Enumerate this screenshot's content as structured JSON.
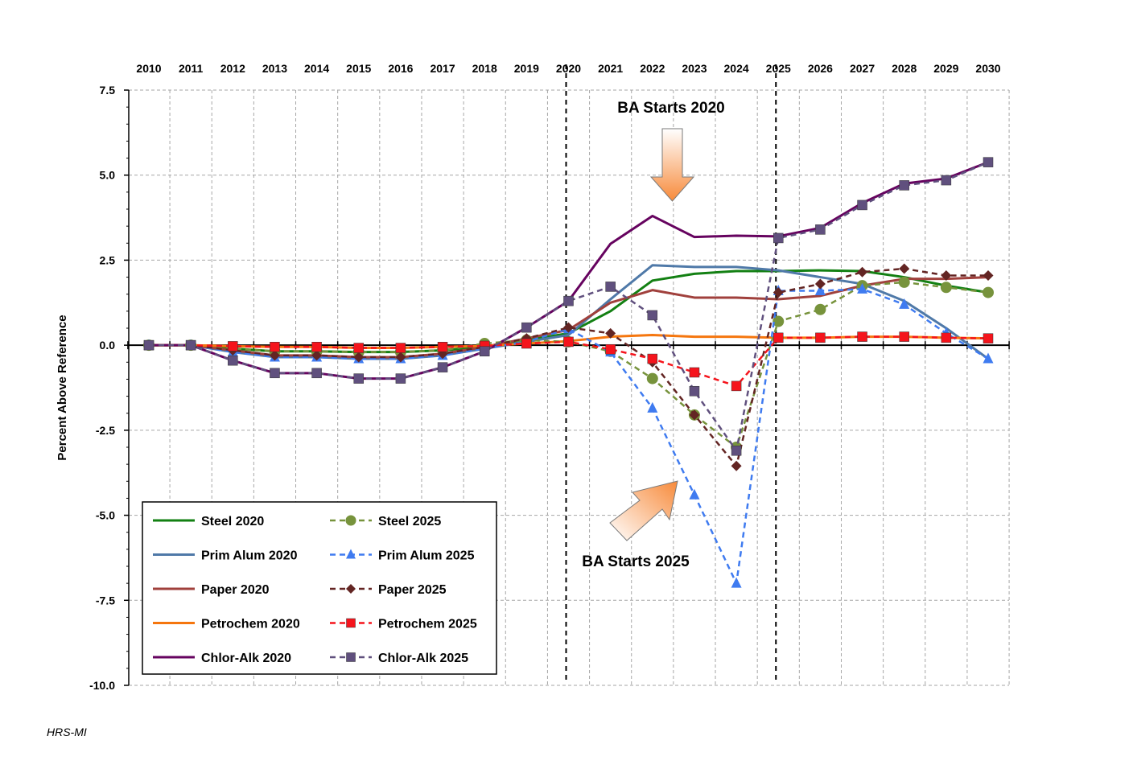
{
  "chart_data": {
    "type": "line",
    "title": "",
    "xlabel": "",
    "ylabel": "Percent Above Reference",
    "x": [
      2010,
      2011,
      2012,
      2013,
      2014,
      2015,
      2016,
      2017,
      2018,
      2019,
      2020,
      2021,
      2022,
      2023,
      2024,
      2025,
      2026,
      2027,
      2028,
      2029,
      2030
    ],
    "x_tick_labels": [
      "2010",
      "2011",
      "2012",
      "2013",
      "2014",
      "2015",
      "2016",
      "2017",
      "2018",
      "2019",
      "2020",
      "2021",
      "2022",
      "2023",
      "2024",
      "2025",
      "2026",
      "2027",
      "2028",
      "2029",
      "2030"
    ],
    "x_axis_position": "top",
    "ylim": [
      -10.0,
      7.5
    ],
    "y_tick_labels": [
      "7.5",
      "5.0",
      "2.5",
      "0.0",
      "-2.5",
      "-5.0",
      "-7.5",
      "-10.0"
    ],
    "y_ticks": [
      7.5,
      5.0,
      2.5,
      0.0,
      -2.5,
      -5.0,
      -7.5,
      -10.0
    ],
    "grid": true,
    "vertical_markers": [
      2020,
      2025
    ],
    "legend_position": "bottom-left",
    "series": [
      {
        "name": "Steel 2020",
        "color": "#138013",
        "style": "solid",
        "marker": "none",
        "values": [
          0.0,
          0.0,
          -0.1,
          -0.18,
          -0.18,
          -0.2,
          -0.2,
          -0.15,
          -0.05,
          0.15,
          0.35,
          1.0,
          1.9,
          2.1,
          2.18,
          2.18,
          2.2,
          2.18,
          2.0,
          1.75,
          1.55
        ]
      },
      {
        "name": "Steel 2025",
        "color": "#77933C",
        "style": "dashed",
        "marker": "circle",
        "values": [
          0.0,
          0.0,
          -0.1,
          -0.18,
          -0.18,
          -0.2,
          -0.2,
          -0.15,
          0.05,
          0.15,
          0.1,
          -0.18,
          -0.98,
          -2.05,
          -3.0,
          0.7,
          1.05,
          1.75,
          1.85,
          1.7,
          1.55
        ]
      },
      {
        "name": "Prim Alum 2020",
        "color": "#4F79A8",
        "style": "solid",
        "marker": "none",
        "values": [
          0.0,
          0.0,
          -0.2,
          -0.35,
          -0.35,
          -0.4,
          -0.4,
          -0.3,
          -0.1,
          0.1,
          0.3,
          1.35,
          2.35,
          2.3,
          2.3,
          2.2,
          2.0,
          1.8,
          1.3,
          0.5,
          -0.4
        ]
      },
      {
        "name": "Prim Alum 2025",
        "color": "#3F7BF0",
        "style": "dashed",
        "marker": "triangle",
        "values": [
          0.0,
          0.0,
          -0.2,
          -0.35,
          -0.35,
          -0.4,
          -0.4,
          -0.3,
          -0.1,
          0.1,
          0.48,
          -0.2,
          -1.85,
          -4.4,
          -7.0,
          1.6,
          1.6,
          1.65,
          1.2,
          0.35,
          -0.4
        ]
      },
      {
        "name": "Paper 2020",
        "color": "#A0403C",
        "style": "solid",
        "marker": "none",
        "values": [
          0.0,
          0.0,
          -0.15,
          -0.3,
          -0.3,
          -0.35,
          -0.35,
          -0.25,
          -0.05,
          0.2,
          0.45,
          1.25,
          1.62,
          1.4,
          1.4,
          1.35,
          1.45,
          1.75,
          1.95,
          1.95,
          2.0
        ]
      },
      {
        "name": "Paper 2025",
        "color": "#632523",
        "style": "dashed",
        "marker": "diamond",
        "values": [
          0.0,
          0.0,
          -0.15,
          -0.3,
          -0.3,
          -0.35,
          -0.35,
          -0.25,
          -0.05,
          0.2,
          0.52,
          0.35,
          -0.5,
          -2.05,
          -3.55,
          1.55,
          1.8,
          2.15,
          2.25,
          2.05,
          2.05
        ]
      },
      {
        "name": "Petrochem 2020",
        "color": "#F5760E",
        "style": "solid",
        "marker": "none",
        "values": [
          0.0,
          0.0,
          -0.03,
          -0.05,
          -0.05,
          -0.08,
          -0.08,
          -0.05,
          -0.02,
          0.05,
          0.12,
          0.25,
          0.3,
          0.25,
          0.25,
          0.22,
          0.22,
          0.25,
          0.25,
          0.22,
          0.2
        ]
      },
      {
        "name": "Petrochem 2025",
        "color": "#F5141C",
        "style": "dashed",
        "marker": "square",
        "values": [
          0.0,
          0.0,
          -0.03,
          -0.05,
          -0.05,
          -0.08,
          -0.08,
          -0.05,
          -0.02,
          0.05,
          0.1,
          -0.12,
          -0.4,
          -0.8,
          -1.2,
          0.22,
          0.22,
          0.25,
          0.25,
          0.22,
          0.2
        ]
      },
      {
        "name": "Chlor-Alk 2020",
        "color": "#66035F",
        "style": "solid",
        "marker": "none",
        "values": [
          0.0,
          0.0,
          -0.45,
          -0.82,
          -0.82,
          -0.98,
          -0.98,
          -0.65,
          -0.18,
          0.52,
          1.3,
          2.98,
          3.8,
          3.18,
          3.22,
          3.2,
          3.45,
          4.18,
          4.75,
          4.9,
          5.38
        ]
      },
      {
        "name": "Chlor-Alk 2025",
        "color": "#60507E",
        "style": "dashed",
        "marker": "square",
        "values": [
          0.0,
          0.0,
          -0.45,
          -0.82,
          -0.82,
          -0.98,
          -0.98,
          -0.65,
          -0.18,
          0.52,
          1.3,
          1.72,
          0.88,
          -1.35,
          -3.1,
          3.15,
          3.4,
          4.12,
          4.7,
          4.85,
          5.38
        ]
      }
    ],
    "annotations": [
      {
        "text": "BA Starts 2020"
      },
      {
        "text": "BA Starts 2025"
      }
    ]
  },
  "credit": "HRS-MI"
}
